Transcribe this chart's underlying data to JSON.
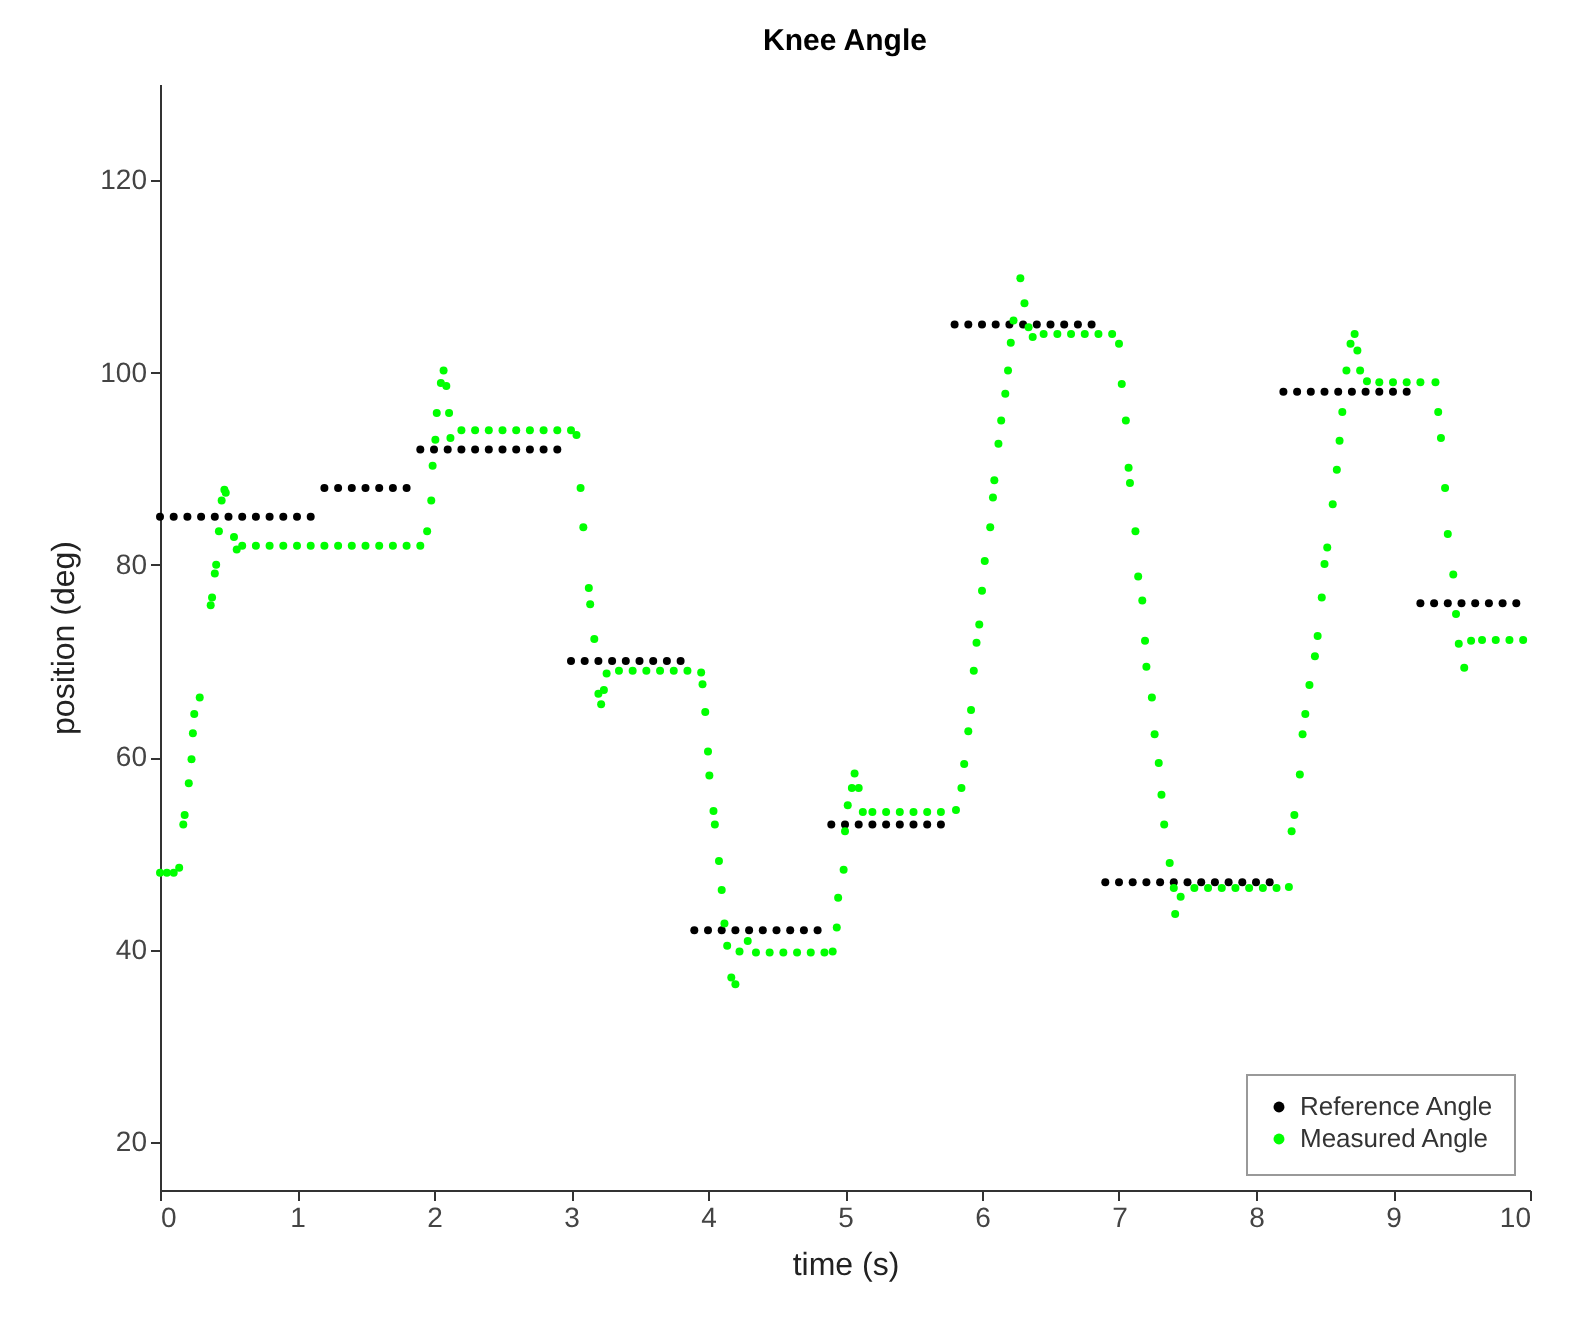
{
  "chart_data": {
    "type": "scatter",
    "title": "Knee Angle",
    "xlabel": "time (s)",
    "ylabel": "position (deg)",
    "xlim": [
      0,
      10
    ],
    "xticks": [
      0,
      1,
      2,
      3,
      4,
      5,
      6,
      7,
      8,
      9,
      10
    ],
    "ylim": [
      15,
      130
    ],
    "yticks": [
      20,
      40,
      60,
      80,
      100,
      120
    ],
    "legend": "bottom right",
    "marker": "circle",
    "series": [
      {
        "name": "Reference Angle",
        "color": "#000000",
        "x": [
          0,
          0.1,
          0.2,
          0.3,
          0.4,
          0.5,
          0.6,
          0.7,
          0.8,
          0.9,
          1.0,
          1.1,
          1.2,
          1.3,
          1.4,
          1.5,
          1.6,
          1.7,
          1.8,
          1.9,
          2.0,
          2.1,
          2.2,
          2.3,
          2.4,
          2.5,
          2.6,
          2.7,
          2.8,
          2.9,
          3.0,
          3.1,
          3.2,
          3.3,
          3.4,
          3.5,
          3.6,
          3.7,
          3.8,
          3.9,
          4.0,
          4.1,
          4.2,
          4.3,
          4.4,
          4.5,
          4.6,
          4.7,
          4.8,
          4.9,
          5.0,
          5.1,
          5.2,
          5.3,
          5.4,
          5.5,
          5.6,
          5.7,
          5.8,
          5.9,
          6.0,
          6.1,
          6.2,
          6.3,
          6.4,
          6.5,
          6.6,
          6.7,
          6.8,
          6.9,
          7.0,
          7.1,
          7.2,
          7.3,
          7.4,
          7.5,
          7.6,
          7.7,
          7.8,
          7.9,
          8.0,
          8.1,
          8.2,
          8.3,
          8.4,
          8.5,
          8.6,
          8.7,
          8.8,
          8.9,
          9.0,
          9.1,
          9.2,
          9.3,
          9.4,
          9.5,
          9.6,
          9.7,
          9.8,
          9.9
        ],
        "values": [
          85,
          85,
          85,
          85,
          85,
          85,
          85,
          85,
          85,
          85,
          85,
          85,
          88,
          88,
          88,
          88,
          88,
          88,
          88,
          92,
          92,
          92,
          92,
          92,
          92,
          92,
          92,
          92,
          92,
          92,
          70,
          70,
          70,
          70,
          70,
          70,
          70,
          70,
          70,
          42,
          42,
          42,
          42,
          42,
          42,
          42,
          42,
          42,
          42,
          53,
          53,
          53,
          53,
          53,
          53,
          53,
          53,
          53,
          105,
          105,
          105,
          105,
          105,
          105,
          105,
          105,
          105,
          105,
          105,
          47,
          47,
          47,
          47,
          47,
          47,
          47,
          47,
          47,
          47,
          47,
          47,
          47,
          98,
          98,
          98,
          98,
          98,
          98,
          98,
          98,
          98,
          98,
          76,
          76,
          76,
          76,
          76,
          76,
          76,
          76
        ]
      },
      {
        "name": "Measured Angle",
        "color": "#00ff00",
        "x": [
          0,
          0.05,
          0.1,
          0.14,
          0.17,
          0.18,
          0.21,
          0.23,
          0.24,
          0.25,
          0.29,
          0.37,
          0.38,
          0.4,
          0.41,
          0.43,
          0.45,
          0.47,
          0.48,
          0.54,
          0.56,
          0.6,
          0.7,
          0.8,
          0.9,
          1.0,
          1.1,
          1.2,
          1.3,
          1.4,
          1.5,
          1.6,
          1.7,
          1.8,
          1.9,
          1.95,
          1.98,
          1.99,
          2.01,
          2.02,
          2.05,
          2.07,
          2.09,
          2.11,
          2.12,
          2.2,
          2.3,
          2.4,
          2.5,
          2.6,
          2.7,
          2.8,
          2.9,
          3.0,
          3.04,
          3.07,
          3.09,
          3.13,
          3.14,
          3.17,
          3.2,
          3.22,
          3.24,
          3.26,
          3.35,
          3.45,
          3.55,
          3.65,
          3.75,
          3.85,
          3.95,
          3.96,
          3.98,
          4.0,
          4.01,
          4.04,
          4.05,
          4.08,
          4.1,
          4.12,
          4.14,
          4.17,
          4.2,
          4.23,
          4.29,
          4.35,
          4.45,
          4.55,
          4.65,
          4.75,
          4.85,
          4.91,
          4.94,
          4.95,
          4.99,
          5.0,
          5.02,
          5.05,
          5.07,
          5.1,
          5.13,
          5.2,
          5.3,
          5.4,
          5.5,
          5.6,
          5.7,
          5.81,
          5.85,
          5.87,
          5.9,
          5.92,
          5.94,
          5.96,
          5.98,
          6.0,
          6.02,
          6.06,
          6.08,
          6.09,
          6.12,
          6.14,
          6.17,
          6.19,
          6.21,
          6.23,
          6.28,
          6.31,
          6.34,
          6.37,
          6.45,
          6.55,
          6.65,
          6.75,
          6.85,
          6.95,
          7.0,
          7.02,
          7.05,
          7.07,
          7.08,
          7.12,
          7.14,
          7.17,
          7.19,
          7.2,
          7.24,
          7.26,
          7.29,
          7.31,
          7.33,
          7.37,
          7.4,
          7.41,
          7.45,
          7.55,
          7.65,
          7.75,
          7.85,
          7.95,
          8.05,
          8.15,
          8.24,
          8.26,
          8.28,
          8.32,
          8.34,
          8.36,
          8.39,
          8.43,
          8.45,
          8.48,
          8.5,
          8.52,
          8.56,
          8.59,
          8.61,
          8.63,
          8.66,
          8.69,
          8.72,
          8.74,
          8.76,
          8.81,
          8.9,
          9.0,
          9.1,
          9.2,
          9.31,
          9.33,
          9.35,
          9.38,
          9.4,
          9.44,
          9.46,
          9.48,
          9.52,
          9.57,
          9.65,
          9.75,
          9.85,
          9.95
        ],
        "values": [
          48,
          48,
          48,
          48.5,
          53,
          54,
          57.3,
          59.8,
          62.5,
          64.5,
          66.2,
          75.8,
          76.6,
          79.1,
          80,
          83.5,
          86.7,
          87.8,
          87.5,
          82.9,
          81.6,
          82,
          82,
          82,
          82,
          82,
          82,
          82,
          82,
          82,
          82,
          82,
          82,
          82,
          82,
          83.5,
          86.7,
          90.3,
          93,
          95.8,
          98.9,
          100.2,
          98.6,
          95.8,
          93.2,
          94,
          94,
          94,
          94,
          94,
          94,
          94,
          94,
          94,
          93.5,
          88,
          83.9,
          77.6,
          75.9,
          72.3,
          66.6,
          65.5,
          67,
          68.7,
          69,
          69,
          69,
          69,
          69,
          69,
          68.8,
          67.6,
          64.7,
          60.6,
          58.1,
          54.4,
          53,
          49.2,
          46.2,
          42.7,
          40.4,
          37.1,
          36.4,
          39.8,
          40.9,
          39.7,
          39.7,
          39.7,
          39.7,
          39.7,
          39.7,
          39.8,
          42.3,
          45.4,
          48.3,
          52.3,
          55,
          56.8,
          58.3,
          56.8,
          54.3,
          54.3,
          54.3,
          54.3,
          54.3,
          54.3,
          54.3,
          54.5,
          56.8,
          59.3,
          62.7,
          64.9,
          69,
          71.9,
          73.8,
          77.3,
          80.4,
          83.9,
          87,
          88.8,
          92.6,
          95,
          97.8,
          100.2,
          103.1,
          105.4,
          109.8,
          107.2,
          104.7,
          103.7,
          104,
          104,
          104,
          104,
          104,
          104,
          103,
          98.8,
          95,
          90.1,
          88.5,
          83.5,
          78.8,
          76.3,
          72.1,
          69.4,
          66.2,
          62.4,
          59.4,
          56.1,
          53,
          49,
          46.4,
          43.7,
          45.5,
          46.4,
          46.4,
          46.4,
          46.4,
          46.4,
          46.4,
          46.4,
          46.5,
          52.3,
          54,
          58.2,
          62.4,
          64.5,
          67.5,
          70.5,
          72.6,
          76.6,
          80.1,
          81.8,
          86.3,
          89.9,
          92.9,
          95.9,
          100.2,
          103,
          104,
          102.3,
          100.2,
          99.1,
          99,
          99,
          99,
          99,
          99,
          95.9,
          93.2,
          88,
          83.2,
          79,
          74.9,
          71.8,
          69.3,
          72.1,
          72.2,
          72.2,
          72.2,
          72.2
        ]
      }
    ]
  }
}
